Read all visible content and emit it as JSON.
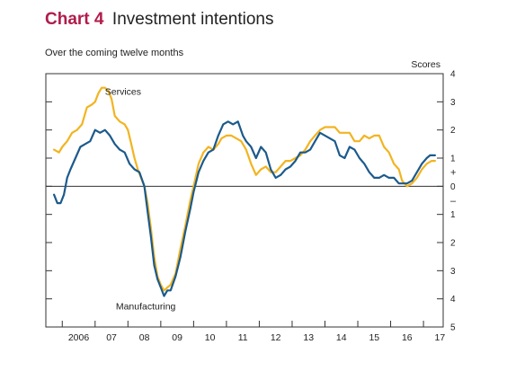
{
  "header": {
    "chart_number": "Chart 4",
    "title": "Investment intentions",
    "subtitle": "Over the coming twelve months"
  },
  "colors": {
    "services": "#f2b420",
    "manufacturing": "#1c5a8c",
    "title_accent": "#b01c4b"
  },
  "chart_data": {
    "type": "line",
    "title": "Investment intentions",
    "subtitle": "Over the coming twelve months",
    "ylabel": "Scores",
    "ylim": [
      -5,
      4
    ],
    "yticks": [
      4,
      3,
      2,
      1,
      0,
      -1,
      -2,
      -3,
      -4,
      -5
    ],
    "ytick_labels": [
      "4",
      "3",
      "2",
      "1",
      "0",
      "1",
      "2",
      "3",
      "4",
      "5"
    ],
    "sign_markers": [
      "+",
      "–"
    ],
    "xlim": [
      2005.5,
      2017.6
    ],
    "xtick_labels": [
      "2006",
      "07",
      "08",
      "09",
      "10",
      "11",
      "12",
      "13",
      "14",
      "15",
      "16",
      "17"
    ],
    "xtick_positions": [
      2006.5,
      2007.5,
      2008.5,
      2009.5,
      2010.5,
      2011.5,
      2012.5,
      2013.5,
      2014.5,
      2015.5,
      2016.5,
      2017.5
    ],
    "annotations": [
      "Services",
      "Manufacturing"
    ],
    "series": [
      {
        "name": "Services",
        "color": "#f2b420",
        "points": [
          [
            2005.75,
            1.3
          ],
          [
            2005.9,
            1.2
          ],
          [
            2006.0,
            1.4
          ],
          [
            2006.15,
            1.6
          ],
          [
            2006.3,
            1.9
          ],
          [
            2006.45,
            2.0
          ],
          [
            2006.6,
            2.2
          ],
          [
            2006.75,
            2.8
          ],
          [
            2006.9,
            2.9
          ],
          [
            2007.0,
            3.0
          ],
          [
            2007.1,
            3.3
          ],
          [
            2007.2,
            3.5
          ],
          [
            2007.3,
            3.5
          ],
          [
            2007.4,
            3.4
          ],
          [
            2007.5,
            3.1
          ],
          [
            2007.6,
            2.5
          ],
          [
            2007.75,
            2.3
          ],
          [
            2007.9,
            2.2
          ],
          [
            2008.0,
            2.0
          ],
          [
            2008.1,
            1.5
          ],
          [
            2008.2,
            1.0
          ],
          [
            2008.3,
            0.6
          ],
          [
            2008.4,
            0.3
          ],
          [
            2008.5,
            0.0
          ],
          [
            2008.6,
            -0.6
          ],
          [
            2008.7,
            -1.5
          ],
          [
            2008.8,
            -2.5
          ],
          [
            2008.9,
            -3.2
          ],
          [
            2009.0,
            -3.5
          ],
          [
            2009.1,
            -3.7
          ],
          [
            2009.2,
            -3.6
          ],
          [
            2009.3,
            -3.5
          ],
          [
            2009.45,
            -3.1
          ],
          [
            2009.6,
            -2.2
          ],
          [
            2009.75,
            -1.4
          ],
          [
            2009.9,
            -0.5
          ],
          [
            2010.0,
            0.0
          ],
          [
            2010.15,
            0.8
          ],
          [
            2010.3,
            1.2
          ],
          [
            2010.45,
            1.4
          ],
          [
            2010.6,
            1.3
          ],
          [
            2010.75,
            1.5
          ],
          [
            2010.85,
            1.7
          ],
          [
            2011.0,
            1.8
          ],
          [
            2011.15,
            1.8
          ],
          [
            2011.3,
            1.7
          ],
          [
            2011.45,
            1.6
          ],
          [
            2011.6,
            1.3
          ],
          [
            2011.75,
            0.8
          ],
          [
            2011.9,
            0.4
          ],
          [
            2012.05,
            0.6
          ],
          [
            2012.2,
            0.7
          ],
          [
            2012.35,
            0.5
          ],
          [
            2012.5,
            0.5
          ],
          [
            2012.65,
            0.7
          ],
          [
            2012.8,
            0.9
          ],
          [
            2012.95,
            0.9
          ],
          [
            2013.1,
            1.0
          ],
          [
            2013.25,
            1.1
          ],
          [
            2013.4,
            1.3
          ],
          [
            2013.55,
            1.6
          ],
          [
            2013.7,
            1.8
          ],
          [
            2013.85,
            2.0
          ],
          [
            2014.0,
            2.1
          ],
          [
            2014.15,
            2.1
          ],
          [
            2014.3,
            2.1
          ],
          [
            2014.45,
            1.9
          ],
          [
            2014.6,
            1.9
          ],
          [
            2014.75,
            1.9
          ],
          [
            2014.9,
            1.6
          ],
          [
            2015.05,
            1.6
          ],
          [
            2015.2,
            1.8
          ],
          [
            2015.35,
            1.7
          ],
          [
            2015.5,
            1.8
          ],
          [
            2015.65,
            1.8
          ],
          [
            2015.8,
            1.4
          ],
          [
            2015.95,
            1.2
          ],
          [
            2016.1,
            0.8
          ],
          [
            2016.25,
            0.6
          ],
          [
            2016.35,
            0.2
          ],
          [
            2016.5,
            0.0
          ],
          [
            2016.65,
            0.1
          ],
          [
            2016.8,
            0.3
          ],
          [
            2016.95,
            0.6
          ],
          [
            2017.1,
            0.8
          ],
          [
            2017.25,
            0.9
          ],
          [
            2017.35,
            0.9
          ]
        ]
      },
      {
        "name": "Manufacturing",
        "color": "#1c5a8c",
        "points": [
          [
            2005.75,
            -0.3
          ],
          [
            2005.85,
            -0.6
          ],
          [
            2005.95,
            -0.6
          ],
          [
            2006.05,
            -0.3
          ],
          [
            2006.15,
            0.3
          ],
          [
            2006.25,
            0.6
          ],
          [
            2006.4,
            1.0
          ],
          [
            2006.55,
            1.4
          ],
          [
            2006.7,
            1.5
          ],
          [
            2006.85,
            1.6
          ],
          [
            2007.0,
            2.0
          ],
          [
            2007.15,
            1.9
          ],
          [
            2007.3,
            2.0
          ],
          [
            2007.45,
            1.8
          ],
          [
            2007.6,
            1.5
          ],
          [
            2007.75,
            1.3
          ],
          [
            2007.9,
            1.2
          ],
          [
            2008.05,
            0.8
          ],
          [
            2008.2,
            0.6
          ],
          [
            2008.35,
            0.5
          ],
          [
            2008.5,
            0.0
          ],
          [
            2008.6,
            -0.9
          ],
          [
            2008.7,
            -1.8
          ],
          [
            2008.8,
            -2.8
          ],
          [
            2008.9,
            -3.3
          ],
          [
            2009.0,
            -3.6
          ],
          [
            2009.1,
            -3.9
          ],
          [
            2009.2,
            -3.7
          ],
          [
            2009.3,
            -3.7
          ],
          [
            2009.45,
            -3.2
          ],
          [
            2009.6,
            -2.5
          ],
          [
            2009.75,
            -1.6
          ],
          [
            2009.9,
            -0.8
          ],
          [
            2010.0,
            -0.2
          ],
          [
            2010.15,
            0.5
          ],
          [
            2010.3,
            0.9
          ],
          [
            2010.45,
            1.2
          ],
          [
            2010.6,
            1.3
          ],
          [
            2010.75,
            1.8
          ],
          [
            2010.9,
            2.2
          ],
          [
            2011.05,
            2.3
          ],
          [
            2011.2,
            2.2
          ],
          [
            2011.35,
            2.3
          ],
          [
            2011.5,
            1.8
          ],
          [
            2011.6,
            1.6
          ],
          [
            2011.75,
            1.4
          ],
          [
            2011.9,
            1.0
          ],
          [
            2012.05,
            1.4
          ],
          [
            2012.2,
            1.2
          ],
          [
            2012.35,
            0.6
          ],
          [
            2012.5,
            0.3
          ],
          [
            2012.65,
            0.4
          ],
          [
            2012.8,
            0.6
          ],
          [
            2012.95,
            0.7
          ],
          [
            2013.1,
            0.9
          ],
          [
            2013.25,
            1.2
          ],
          [
            2013.4,
            1.2
          ],
          [
            2013.55,
            1.3
          ],
          [
            2013.7,
            1.6
          ],
          [
            2013.85,
            1.9
          ],
          [
            2014.0,
            1.8
          ],
          [
            2014.15,
            1.7
          ],
          [
            2014.3,
            1.6
          ],
          [
            2014.45,
            1.1
          ],
          [
            2014.6,
            1.0
          ],
          [
            2014.75,
            1.4
          ],
          [
            2014.9,
            1.3
          ],
          [
            2015.05,
            1.0
          ],
          [
            2015.2,
            0.8
          ],
          [
            2015.35,
            0.5
          ],
          [
            2015.5,
            0.3
          ],
          [
            2015.65,
            0.3
          ],
          [
            2015.8,
            0.4
          ],
          [
            2015.95,
            0.3
          ],
          [
            2016.1,
            0.3
          ],
          [
            2016.25,
            0.1
          ],
          [
            2016.35,
            0.1
          ],
          [
            2016.5,
            0.1
          ],
          [
            2016.65,
            0.2
          ],
          [
            2016.8,
            0.5
          ],
          [
            2016.95,
            0.8
          ],
          [
            2017.1,
            1.0
          ],
          [
            2017.2,
            1.1
          ],
          [
            2017.35,
            1.1
          ]
        ]
      }
    ]
  }
}
